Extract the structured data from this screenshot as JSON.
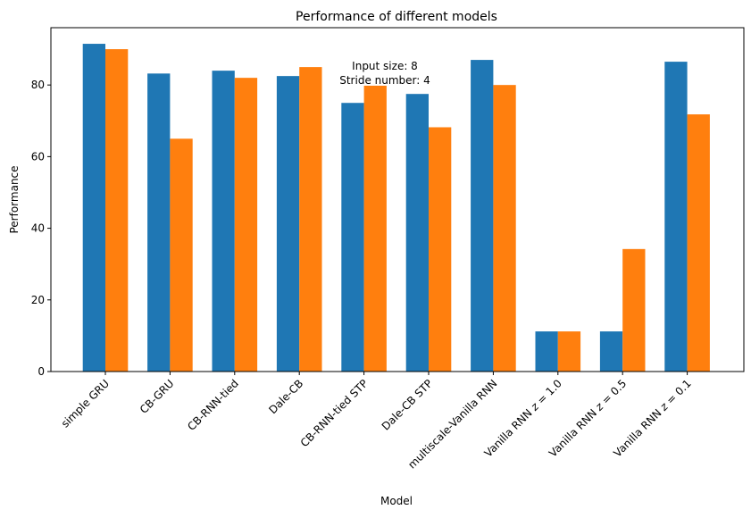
{
  "chart_data": {
    "type": "bar",
    "title": "Performance of different models",
    "xlabel": "Model",
    "ylabel": "Performance",
    "ylim": [
      0,
      96
    ],
    "yticks": [
      0,
      20,
      40,
      60,
      80
    ],
    "grid": false,
    "categories": [
      "simple GRU",
      "CB-GRU",
      "CB-RNN-tied",
      "Dale-CB",
      "CB-RNN-tied STP",
      "Dale-CB STP",
      "multiscale-Vanilla RNN",
      "Vanilla RNN z = 1.0",
      "Vanilla RNN z = 0.5",
      "Vanilla RNN z = 0.1"
    ],
    "series": [
      {
        "values": [
          91.5,
          83.2,
          84.0,
          82.5,
          75.0,
          77.5,
          87.0,
          11.2,
          11.2,
          86.5
        ],
        "color": "#1f77b4"
      },
      {
        "values": [
          90.0,
          65.0,
          82.0,
          85.0,
          79.8,
          68.2,
          80.0,
          11.2,
          34.2,
          71.8
        ],
        "color": "#ff7f0e"
      }
    ],
    "annotation": {
      "lines": [
        "Input size: 8",
        "Stride number: 4"
      ]
    }
  }
}
